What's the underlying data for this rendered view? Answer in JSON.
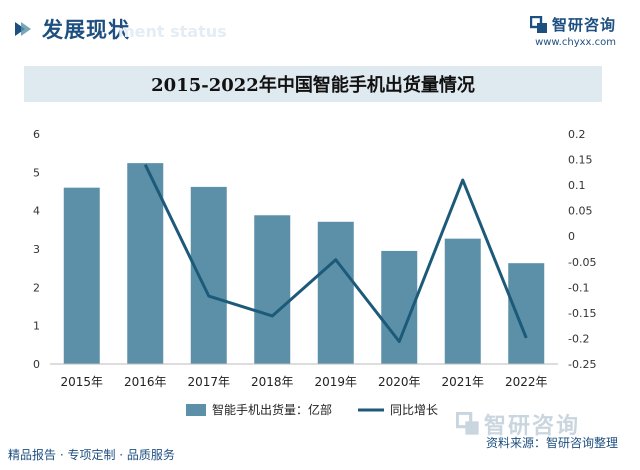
{
  "header": {
    "section_title": "发展现状",
    "section_ghost": "ment status",
    "brand_name": "智研咨询",
    "brand_url": "www.chyxx.com"
  },
  "chart_data": {
    "type": "bar",
    "title": "2015-2022年中国智能手机出货量情况",
    "categories": [
      "2015年",
      "2016年",
      "2017年",
      "2018年",
      "2019年",
      "2020年",
      "2021年",
      "2022年"
    ],
    "series": [
      {
        "name": "智能手机出货量：亿部",
        "type": "bar",
        "axis": "left",
        "color": "#5b90a8",
        "values": [
          4.6,
          5.24,
          4.62,
          3.88,
          3.71,
          2.95,
          3.27,
          2.63
        ]
      },
      {
        "name": "同比增长",
        "type": "line",
        "axis": "right",
        "color": "#1d5a7a",
        "values": [
          null,
          0.14,
          -0.117,
          -0.156,
          -0.046,
          -0.206,
          0.11,
          -0.199
        ]
      }
    ],
    "y_left": {
      "min": 0,
      "max": 6,
      "ticks": [
        0,
        1,
        2,
        3,
        4,
        5,
        6
      ]
    },
    "y_right": {
      "min": -0.25,
      "max": 0.2,
      "ticks": [
        -0.25,
        -0.2,
        -0.15,
        -0.1,
        -0.05,
        0,
        0.05,
        0.1,
        0.15,
        0.2
      ],
      "tick_labels": [
        "-0.25",
        "-0.2",
        "-0.15",
        "-0.1",
        "-0.05",
        "0",
        "0.05",
        "0.1",
        "0.15",
        "0.2"
      ]
    },
    "grid": false,
    "legend": "bottom"
  },
  "footer": {
    "left_text": "精品报告 · 专项定制 · 品质服务",
    "source_text": "资料来源：智研咨询整理",
    "watermark_text": "智研咨询"
  }
}
